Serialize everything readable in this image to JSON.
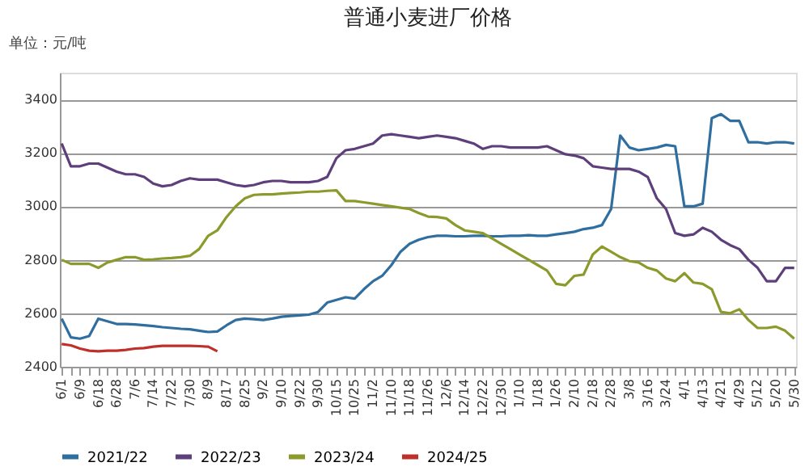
{
  "chart_data": {
    "type": "line",
    "title": "普通小麦进厂价格",
    "ylabel": "单位：元/吨",
    "categories": [
      "6/1",
      null,
      "6/9",
      null,
      "6/18",
      null,
      "6/28",
      null,
      "7/6",
      null,
      "7/14",
      null,
      "7/22",
      null,
      "7/30",
      null,
      "8/9",
      null,
      "8/17",
      null,
      "8/25",
      null,
      "9/2",
      null,
      "9/10",
      null,
      "9/22",
      null,
      "9/30",
      null,
      "10/15",
      null,
      "10/25",
      null,
      "11/2",
      null,
      "11/10",
      null,
      "11/18",
      null,
      "11/26",
      null,
      "12/6",
      null,
      "12/14",
      null,
      "12/22",
      null,
      "12/30",
      null,
      "1/10",
      null,
      "1/18",
      null,
      "1/26",
      null,
      "2/10",
      null,
      "2/18",
      null,
      "2/28",
      null,
      "3/8",
      null,
      "3/16",
      null,
      "3/24",
      null,
      "4/1",
      null,
      "4/13",
      null,
      "4/21",
      null,
      "4/29",
      null,
      "5/12",
      null,
      "5/20",
      null,
      "5/30"
    ],
    "series": [
      {
        "name": "2021/22",
        "color": "#2f6e9e",
        "values": [
          2580,
          2510,
          2505,
          2515,
          2580,
          2570,
          2560,
          2560,
          2558,
          2555,
          2552,
          2548,
          2545,
          2542,
          2540,
          2535,
          2530,
          2532,
          2555,
          2575,
          2580,
          2578,
          2575,
          2580,
          2587,
          2590,
          2592,
          2595,
          2605,
          2640,
          2650,
          2660,
          2655,
          2690,
          2720,
          2740,
          2780,
          2830,
          2860,
          2875,
          2885,
          2890,
          2890,
          2888,
          2888,
          2890,
          2890,
          2888,
          2888,
          2890,
          2890,
          2892,
          2890,
          2890,
          2895,
          2900,
          2905,
          2915,
          2920,
          2930,
          2990,
          3265,
          3220,
          3210,
          3215,
          3220,
          3230,
          3225,
          3000,
          3000,
          3010,
          3330,
          3345,
          3320,
          3320,
          3240,
          3240,
          3235,
          3240,
          3240,
          3235
        ]
      },
      {
        "name": "2022/23",
        "color": "#5e3f7c",
        "values": [
          3235,
          3150,
          3150,
          3160,
          3160,
          3145,
          3130,
          3120,
          3120,
          3110,
          3085,
          3075,
          3080,
          3095,
          3105,
          3100,
          3100,
          3100,
          3090,
          3080,
          3075,
          3080,
          3090,
          3095,
          3095,
          3090,
          3090,
          3090,
          3095,
          3110,
          3180,
          3210,
          3215,
          3225,
          3235,
          3265,
          3270,
          3265,
          3260,
          3255,
          3260,
          3265,
          3260,
          3255,
          3245,
          3235,
          3215,
          3225,
          3225,
          3220,
          3220,
          3220,
          3220,
          3225,
          3210,
          3195,
          3190,
          3180,
          3150,
          3145,
          3140,
          3140,
          3140,
          3130,
          3110,
          3030,
          2990,
          2900,
          2890,
          2895,
          2920,
          2905,
          2875,
          2855,
          2840,
          2800,
          2770,
          2720,
          2720,
          2770,
          2770
        ]
      },
      {
        "name": "2023/24",
        "color": "#8c9a2c",
        "values": [
          2800,
          2785,
          2785,
          2785,
          2770,
          2790,
          2800,
          2810,
          2810,
          2800,
          2802,
          2805,
          2807,
          2810,
          2815,
          2840,
          2890,
          2910,
          2960,
          3000,
          3030,
          3043,
          3045,
          3045,
          3048,
          3050,
          3052,
          3055,
          3055,
          3058,
          3060,
          3020,
          3020,
          3015,
          3010,
          3005,
          3000,
          2995,
          2990,
          2975,
          2962,
          2960,
          2955,
          2930,
          2910,
          2905,
          2900,
          2880,
          2860,
          2840,
          2820,
          2800,
          2780,
          2760,
          2710,
          2705,
          2740,
          2745,
          2820,
          2850,
          2830,
          2810,
          2795,
          2790,
          2770,
          2760,
          2730,
          2720,
          2750,
          2715,
          2710,
          2690,
          2605,
          2600,
          2615,
          2575,
          2545,
          2545,
          2550,
          2535,
          2505
        ]
      },
      {
        "name": "2024/25",
        "color": "#c0302b",
        "values": [
          2485,
          2480,
          2468,
          2460,
          2458,
          2460,
          2460,
          2463,
          2468,
          2470,
          2475,
          2478,
          2478,
          2478,
          2478,
          2477,
          2475,
          2458,
          null,
          null,
          null,
          null,
          null,
          null,
          null,
          null,
          null,
          null,
          null,
          null,
          null,
          null,
          null,
          null,
          null,
          null,
          null,
          null,
          null,
          null,
          null,
          null,
          null,
          null,
          null,
          null,
          null,
          null,
          null,
          null,
          null,
          null,
          null,
          null,
          null,
          null,
          null,
          null,
          null,
          null,
          null,
          null,
          null,
          null,
          null,
          null,
          null,
          null,
          null,
          null,
          null,
          null,
          null,
          null,
          null,
          null,
          null,
          null,
          null,
          null,
          null
        ]
      }
    ],
    "ylim": [
      2400,
      3500
    ],
    "yticks": [
      2400,
      2600,
      2800,
      3000,
      3200,
      3400
    ],
    "grid": "y",
    "legend": "bottom"
  }
}
